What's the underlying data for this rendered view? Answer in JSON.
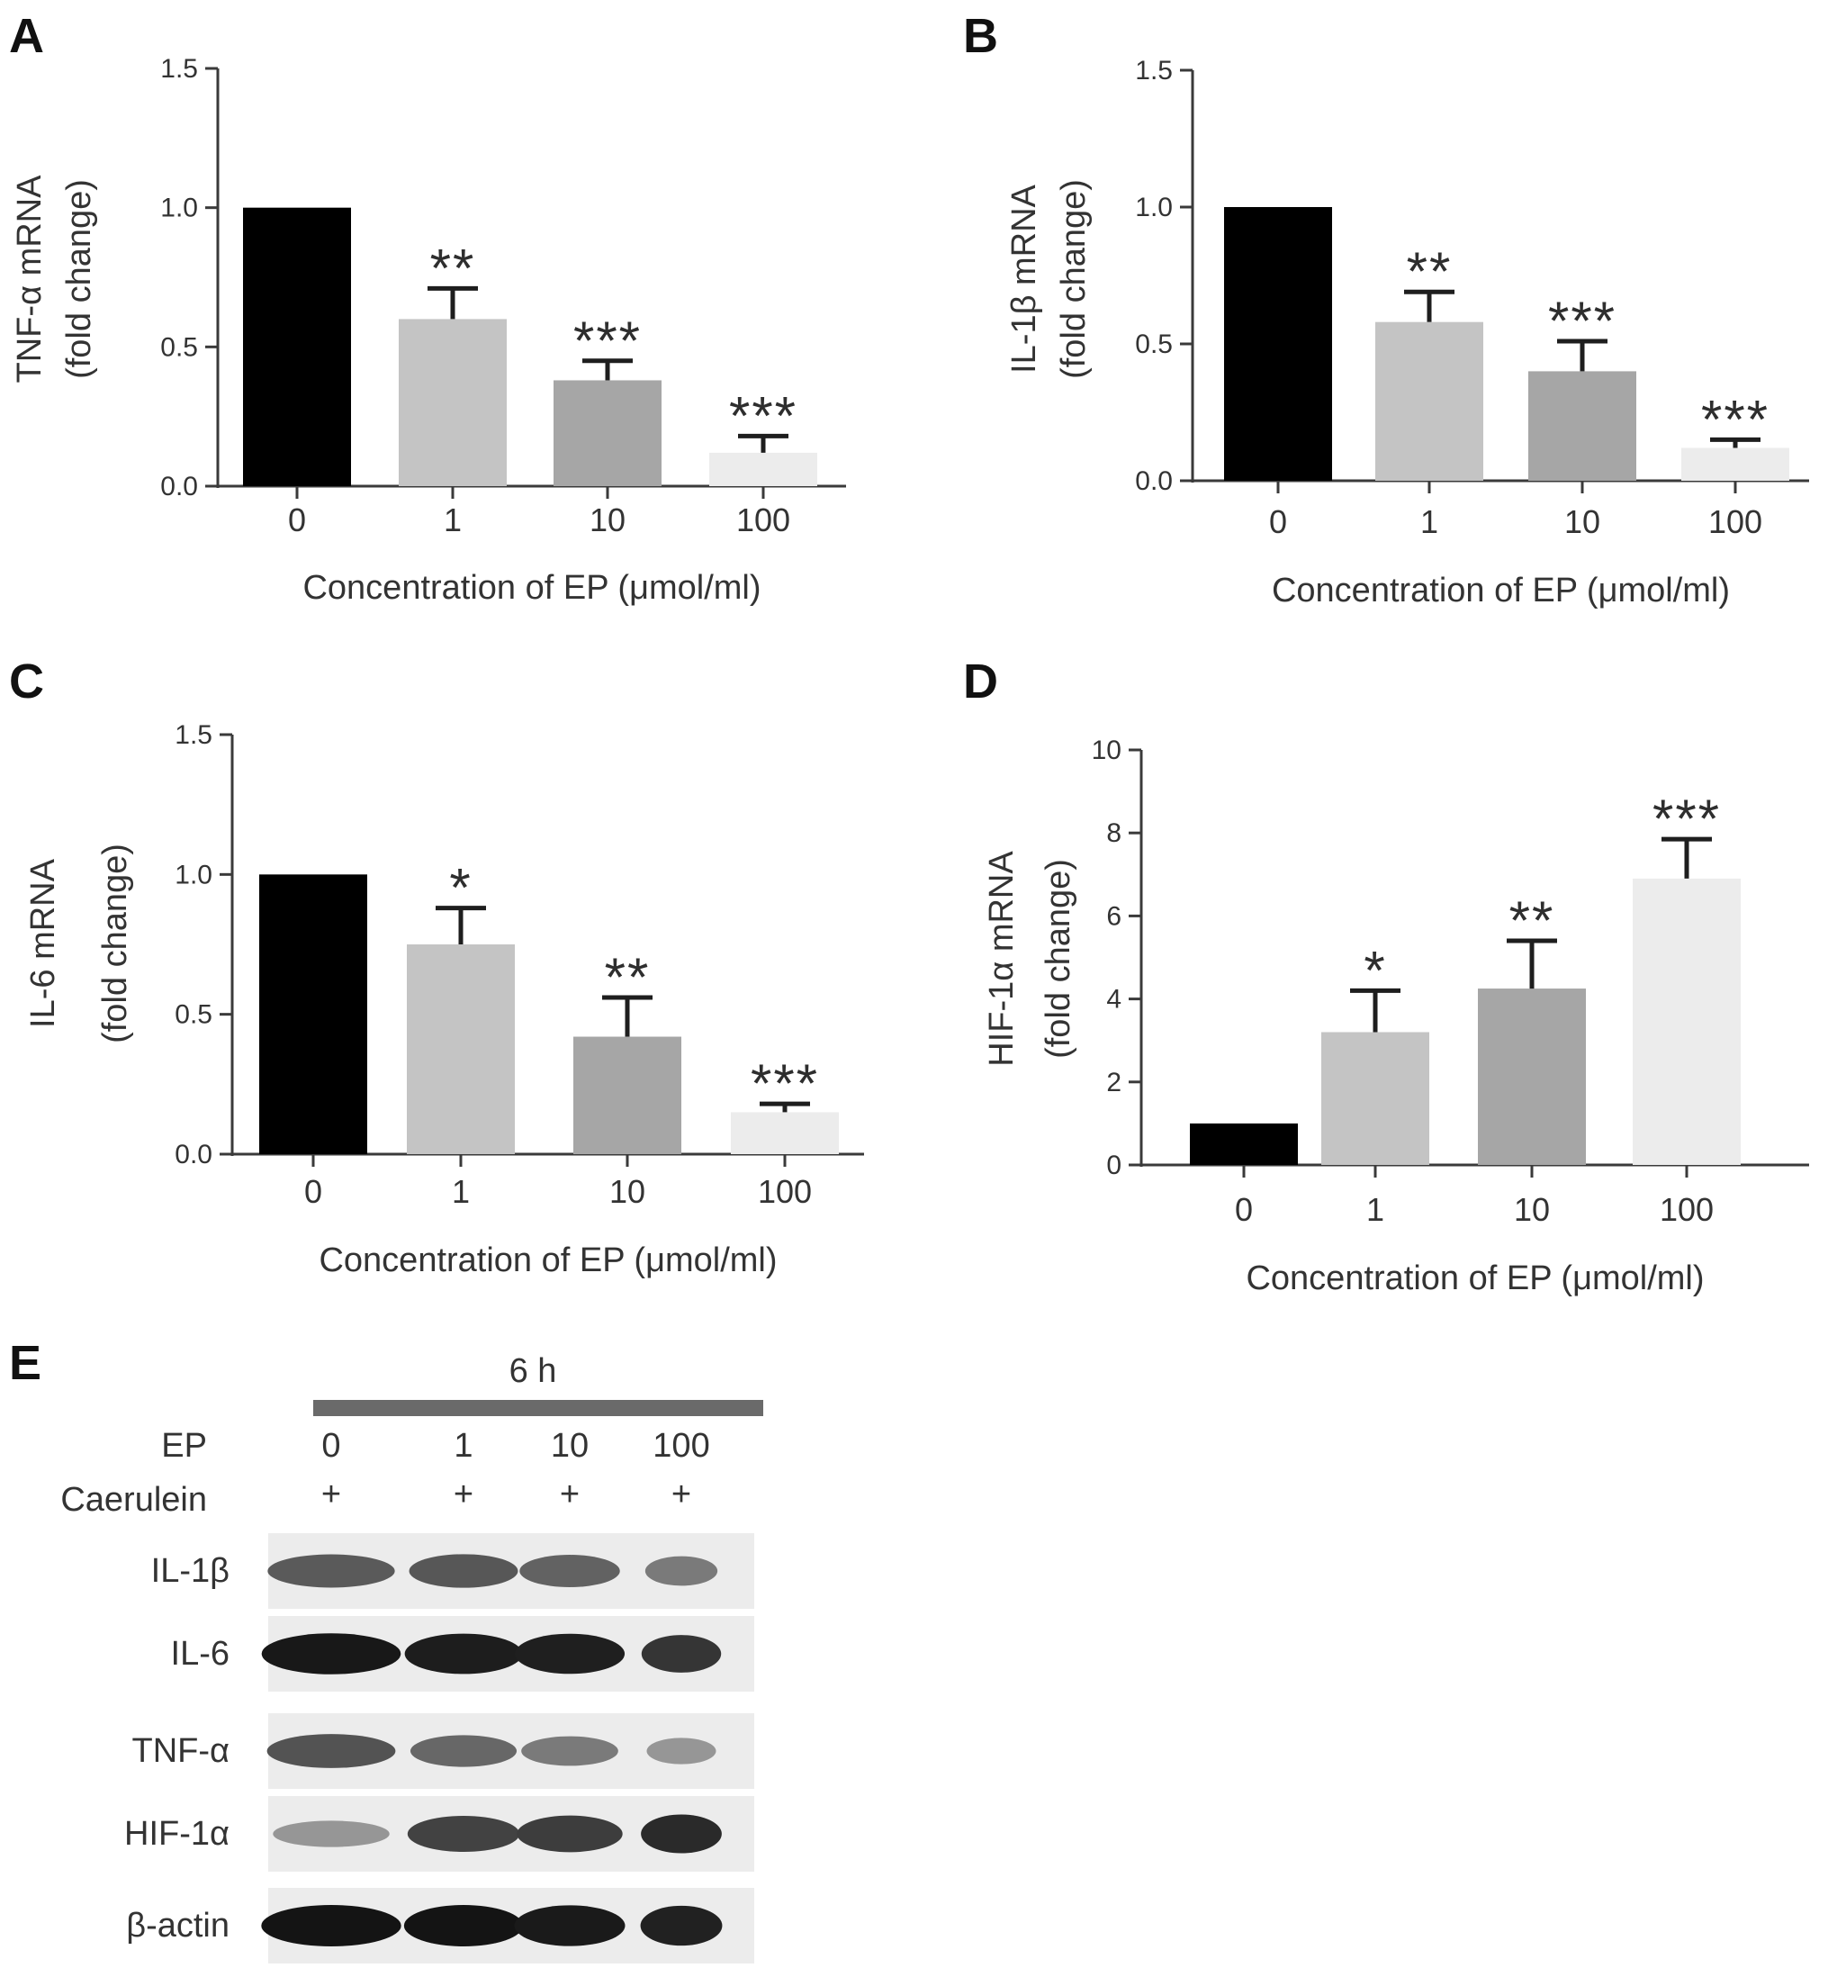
{
  "chart_data": [
    {
      "panel": "A",
      "type": "bar",
      "categories": [
        "0",
        "1",
        "10",
        "100"
      ],
      "values": [
        1.0,
        0.6,
        0.38,
        0.12
      ],
      "errors": [
        0,
        0.11,
        0.07,
        0.06
      ],
      "significance": [
        "",
        "**",
        "***",
        "***"
      ],
      "xlabel": "Concentration of EP (μmol/ml)",
      "ylabel": "TNF-α mRNA",
      "ylabel2": "(fold change)",
      "ylim": [
        0,
        1.5
      ],
      "yticks": [
        0.0,
        0.5,
        1.0,
        1.5
      ],
      "ytick_labels": [
        "0.0",
        "0.5",
        "1.0",
        "1.5"
      ],
      "colors": [
        "#000000",
        "#c4c4c4",
        "#a6a6a6",
        "#ececec"
      ]
    },
    {
      "panel": "B",
      "type": "bar",
      "categories": [
        "0",
        "1",
        "10",
        "100"
      ],
      "values": [
        1.0,
        0.58,
        0.4,
        0.12
      ],
      "errors": [
        0,
        0.11,
        0.11,
        0.03
      ],
      "significance": [
        "",
        "**",
        "***",
        "***"
      ],
      "xlabel": "Concentration of EP (μmol/ml)",
      "ylabel": "IL-1β mRNA",
      "ylabel2": "(fold change)",
      "ylim": [
        0,
        1.5
      ],
      "yticks": [
        0.0,
        0.5,
        1.0,
        1.5
      ],
      "ytick_labels": [
        "0.0",
        "0.5",
        "1.0",
        "1.5"
      ],
      "colors": [
        "#000000",
        "#c4c4c4",
        "#a6a6a6",
        "#ececec"
      ]
    },
    {
      "panel": "C",
      "type": "bar",
      "categories": [
        "0",
        "1",
        "10",
        "100"
      ],
      "values": [
        1.0,
        0.75,
        0.42,
        0.15
      ],
      "errors": [
        0,
        0.13,
        0.14,
        0.03
      ],
      "significance": [
        "",
        "*",
        "**",
        "***"
      ],
      "xlabel": "Concentration of EP (μmol/ml)",
      "ylabel": "IL-6 mRNA",
      "ylabel2": "(fold change)",
      "ylim": [
        0,
        1.5
      ],
      "yticks": [
        0.0,
        0.5,
        1.0,
        1.5
      ],
      "ytick_labels": [
        "0.0",
        "0.5",
        "1.0",
        "1.5"
      ],
      "colors": [
        "#000000",
        "#c4c4c4",
        "#a6a6a6",
        "#ececec"
      ]
    },
    {
      "panel": "D",
      "type": "bar",
      "categories": [
        "0",
        "1",
        "10",
        "100"
      ],
      "values": [
        1.0,
        3.2,
        4.25,
        6.9
      ],
      "errors": [
        0,
        1.0,
        1.15,
        0.95
      ],
      "significance": [
        "",
        "*",
        "**",
        "***"
      ],
      "xlabel": "Concentration of EP (μmol/ml)",
      "ylabel": "HIF-1α mRNA",
      "ylabel2": "(fold change)",
      "ylim": [
        0,
        10
      ],
      "yticks": [
        0,
        2,
        4,
        6,
        8,
        10
      ],
      "ytick_labels": [
        "0",
        "2",
        "4",
        "6",
        "8",
        "10"
      ],
      "colors": [
        "#000000",
        "#c4c4c4",
        "#a6a6a6",
        "#ececec"
      ]
    }
  ],
  "blot": {
    "panel": "E",
    "timepoint": "6 h",
    "ep_label": "EP",
    "ep_doses": [
      "0",
      "1",
      "10",
      "100"
    ],
    "caerulein_label": "Caerulein",
    "caerulein_signs": [
      "+",
      "+",
      "+",
      "+"
    ],
    "bands": [
      {
        "name": "IL-1β",
        "intensity": [
          0.62,
          0.64,
          0.58,
          0.45
        ]
      },
      {
        "name": "IL-6",
        "intensity": [
          0.98,
          0.95,
          0.94,
          0.82
        ]
      },
      {
        "name": "TNF-α",
        "intensity": [
          0.66,
          0.55,
          0.45,
          0.3
        ]
      },
      {
        "name": "HIF-1α",
        "intensity": [
          0.3,
          0.75,
          0.78,
          0.88
        ]
      },
      {
        "name": "β-actin",
        "intensity": [
          1.0,
          1.0,
          0.97,
          0.93
        ]
      }
    ]
  }
}
